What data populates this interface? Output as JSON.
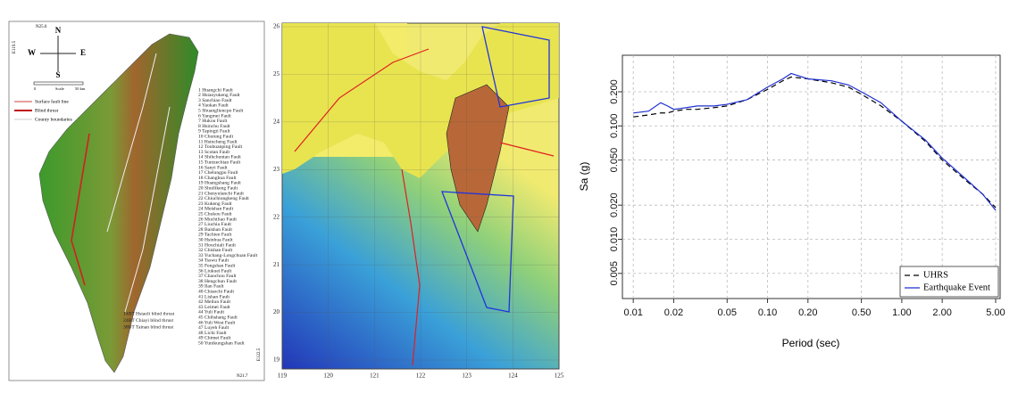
{
  "maps": {
    "left": {
      "corner_labels": [
        "N25.6",
        "E119.5",
        "N21.7",
        "E122.5"
      ],
      "compass": [
        "N",
        "S",
        "E",
        "W"
      ],
      "scale": [
        "0",
        "Scale",
        "50 km"
      ],
      "legend": [
        "Surface fault line",
        "Blind thrust",
        "County boundaries"
      ],
      "faults": [
        "1 Huangchi Fault",
        "2 Hsiaoyukeng Fault",
        "3 Sanchiao Fault",
        "4 Yaokan Fault",
        "5 Shuangliencpo Fault",
        "6 Yangmei Fault",
        "7 Hukou Fault",
        "8 Hsinchu Fault",
        "9 Tapingti Fault",
        "10 Chutung Fault",
        "11 Hsincheng Fault",
        "12 Touhuanping Fault",
        "13 Scotan Fault",
        "14 Shihchuntan Fault",
        "15 Tuntzechiao Fault",
        "16 Sanyi Fault",
        "17 Chelungpu Fault",
        "18 Changhua Fault",
        "19 Huangshang Fault",
        "20 Shuilikeng Fault",
        "21 Chenyulanchi Fault",
        "22 Chiuchiungkeng Fault",
        "23 Kukeng Fault",
        "24 Meishan Fault",
        "25 Chukou Fault",
        "26 Muchiliao Fault",
        "27 Liuchia Fault",
        "28 Baishan Fault",
        "29 Tachien Fault",
        "30 Hsinhua Fault",
        "31 Houchiali Fault",
        "32 Chishan Fault",
        "33 Yuchang-Longchuan Fault",
        "34 Tsswu Fault",
        "35 Fengshan Fault",
        "36 Liukuei Fault",
        "37 Chaochou Fault",
        "38 Hengchun Fault",
        "39 Ilan Fault",
        "40 Chiaochi Fault",
        "41 Lishan Fault",
        "42 Meilun Fault",
        "43 Leimei Fault",
        "44 Yuli Fault",
        "45 Chihshang Fault",
        "46 Yuli West Fault",
        "47 Luyeh Fault",
        "48 Lichi Fault",
        "49 Chimei Fault",
        "50 Yunikungshan Fault"
      ],
      "blind_thrusts": [
        "14BT Hsiaoli blind thrust",
        "24BT Chiayi blind thrust",
        "38BT Tainan blind thrust"
      ]
    },
    "middle": {
      "xticks": [
        "119",
        "120",
        "121",
        "122",
        "123",
        "124",
        "125"
      ],
      "yticks": [
        "19",
        "20",
        "21",
        "22",
        "23",
        "24",
        "25",
        "26"
      ]
    }
  },
  "chart_data": {
    "type": "line",
    "xlabel": "Period (sec)",
    "ylabel": "Sa (g)",
    "log_x": true,
    "log_y": true,
    "grid": true,
    "legend": "lower right",
    "x": [
      0.01,
      0.013,
      0.016,
      0.018,
      0.02,
      0.025,
      0.03,
      0.04,
      0.05,
      0.07,
      0.1,
      0.13,
      0.15,
      0.2,
      0.3,
      0.4,
      0.5,
      0.7,
      1,
      1.5,
      2,
      3,
      4,
      5
    ],
    "series": [
      {
        "name": "UHRS",
        "color": "#000000",
        "dash": true,
        "values": [
          0.12,
          0.125,
          0.13,
          0.13,
          0.135,
          0.14,
          0.14,
          0.145,
          0.15,
          0.17,
          0.21,
          0.25,
          0.27,
          0.26,
          0.24,
          0.22,
          0.19,
          0.15,
          0.11,
          0.073,
          0.05,
          0.033,
          0.025,
          0.019
        ]
      },
      {
        "name": "Earthquake Event",
        "color": "#1f2fd0",
        "dash": false,
        "values": [
          0.13,
          0.135,
          0.16,
          0.15,
          0.14,
          0.145,
          0.15,
          0.15,
          0.155,
          0.17,
          0.22,
          0.26,
          0.29,
          0.26,
          0.25,
          0.23,
          0.2,
          0.16,
          0.11,
          0.075,
          0.052,
          0.034,
          0.025,
          0.018
        ]
      }
    ],
    "xlim": [
      0.0083,
      5.4
    ],
    "ylim": [
      0.003,
      0.42
    ],
    "xticks": [
      0.01,
      0.02,
      0.05,
      {
        "value": 0.1,
        "label": "0.10"
      },
      {
        "value": 0.2,
        "label": "0.20"
      },
      {
        "value": 0.5,
        "label": "0.50"
      },
      {
        "value": 1,
        "label": "1.00"
      },
      {
        "value": 2,
        "label": "2.00"
      },
      {
        "value": 5,
        "label": "5.00"
      }
    ],
    "yticks": [
      0.005,
      {
        "value": 0.01,
        "label": "0.010"
      },
      {
        "value": 0.02,
        "label": "0.020"
      },
      {
        "value": 0.05,
        "label": "0.050"
      },
      {
        "value": 0.1,
        "label": "0.100"
      },
      {
        "value": 0.2,
        "label": "0.200"
      }
    ]
  }
}
